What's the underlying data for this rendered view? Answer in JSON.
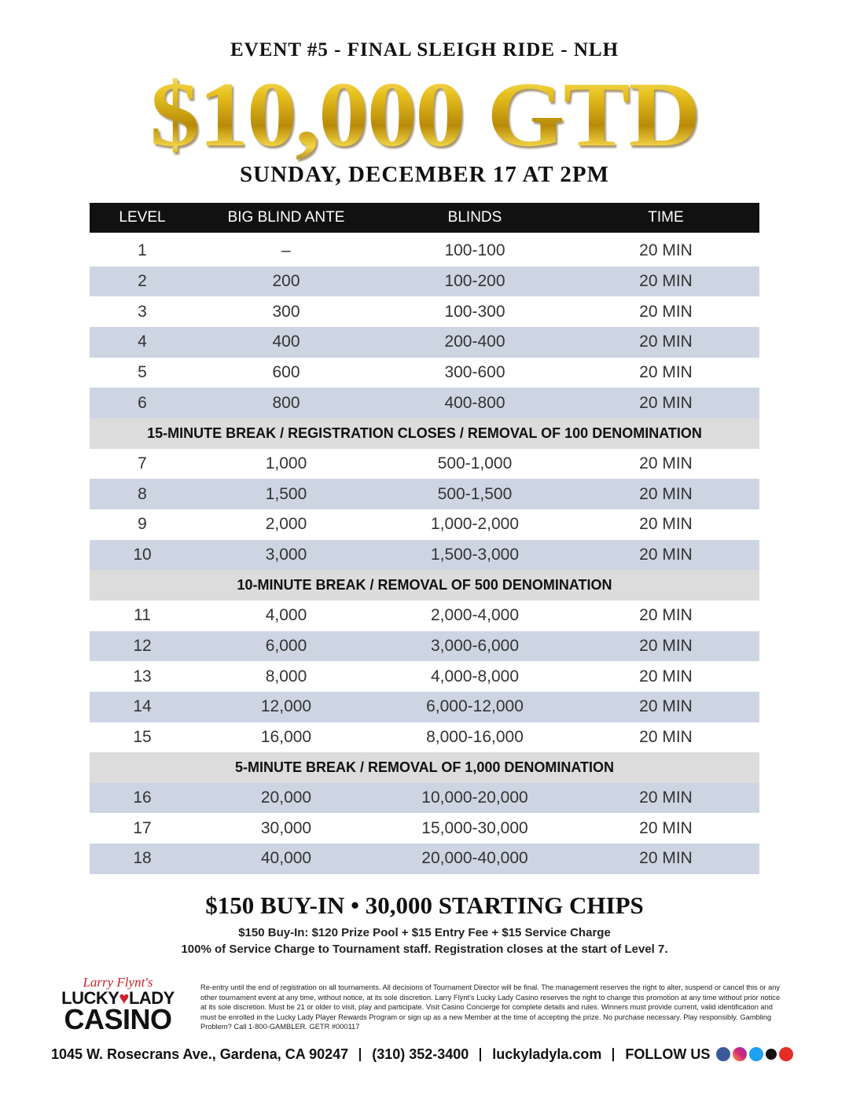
{
  "header": {
    "event": "EVENT #5 - FINAL SLEIGH RIDE - NLH",
    "guarantee": "$10,000 GTD",
    "date": "SUNDAY, DECEMBER 17 AT 2PM"
  },
  "table": {
    "columns": [
      "LEVEL",
      "BIG BLIND ANTE",
      "BLINDS",
      "TIME"
    ],
    "rows": [
      [
        "1",
        "–",
        "100-100",
        "20 MIN"
      ],
      [
        "2",
        "200",
        "100-200",
        "20 MIN"
      ],
      [
        "3",
        "300",
        "100-300",
        "20 MIN"
      ],
      [
        "4",
        "400",
        "200-400",
        "20 MIN"
      ],
      [
        "5",
        "600",
        "300-600",
        "20 MIN"
      ],
      [
        "6",
        "800",
        "400-800",
        "20 MIN"
      ],
      [
        "15-MINUTE BREAK / REGISTRATION CLOSES / REMOVAL OF 100 DENOMINATION"
      ],
      [
        "7",
        "1,000",
        "500-1,000",
        "20 MIN"
      ],
      [
        "8",
        "1,500",
        "500-1,500",
        "20 MIN"
      ],
      [
        "9",
        "2,000",
        "1,000-2,000",
        "20 MIN"
      ],
      [
        "10",
        "3,000",
        "1,500-3,000",
        "20 MIN"
      ],
      [
        "10-MINUTE BREAK / REMOVAL OF 500 DENOMINATION"
      ],
      [
        "11",
        "4,000",
        "2,000-4,000",
        "20 MIN"
      ],
      [
        "12",
        "6,000",
        "3,000-6,000",
        "20 MIN"
      ],
      [
        "13",
        "8,000",
        "4,000-8,000",
        "20 MIN"
      ],
      [
        "14",
        "12,000",
        "6,000-12,000",
        "20 MIN"
      ],
      [
        "15",
        "16,000",
        "8,000-16,000",
        "20 MIN"
      ],
      [
        "5-MINUTE BREAK / REMOVAL OF 1,000 DENOMINATION"
      ],
      [
        "16",
        "20,000",
        "10,000-20,000",
        "20 MIN"
      ],
      [
        "17",
        "30,000",
        "15,000-30,000",
        "20 MIN"
      ],
      [
        "18",
        "40,000",
        "20,000-40,000",
        "20 MIN"
      ]
    ]
  },
  "summary": {
    "headline": "$150 BUY-IN • 30,000 STARTING CHIPS",
    "lines": [
      "$150 Buy-In: $120 Prize Pool + $15 Entry Fee + $15 Service Charge",
      "100% of Service Charge to Tournament staff. Registration closes at the start of Level 7."
    ]
  },
  "logo": {
    "script": "Larry Flynt's",
    "lucky": "LUCKY",
    "lady": "LADY",
    "casino": "CASINO"
  },
  "disclaimer": "Re-entry until the end of registration on all tournaments. All decisions of Tournament Director will be final. The management reserves the right to alter, suspend or cancel this or any other tournament event at any time, without notice, at its sole discretion. Larry Flynt's Lucky Lady Casino reserves the right to change this promotion at any time without prior notice at its sole discretion. Must be 21 or older to visit, play and participate. Visit Casino Concierge for complete details and rules. Winners must provide current, valid identification and must be enrolled in the Lucky Lady Player Rewards Program or sign up as a new Member at the time of accepting the prize. No purchase necessary. Play responsibly. Gambling Problem? Call 1-800-GAMBLER. GETR #000117",
  "footer": {
    "address": "1045 W. Rosecrans Ave., Gardena, CA 90247",
    "phone": "(310) 352-3400",
    "website": "luckyladyla.com",
    "follow": "FOLLOW US"
  }
}
